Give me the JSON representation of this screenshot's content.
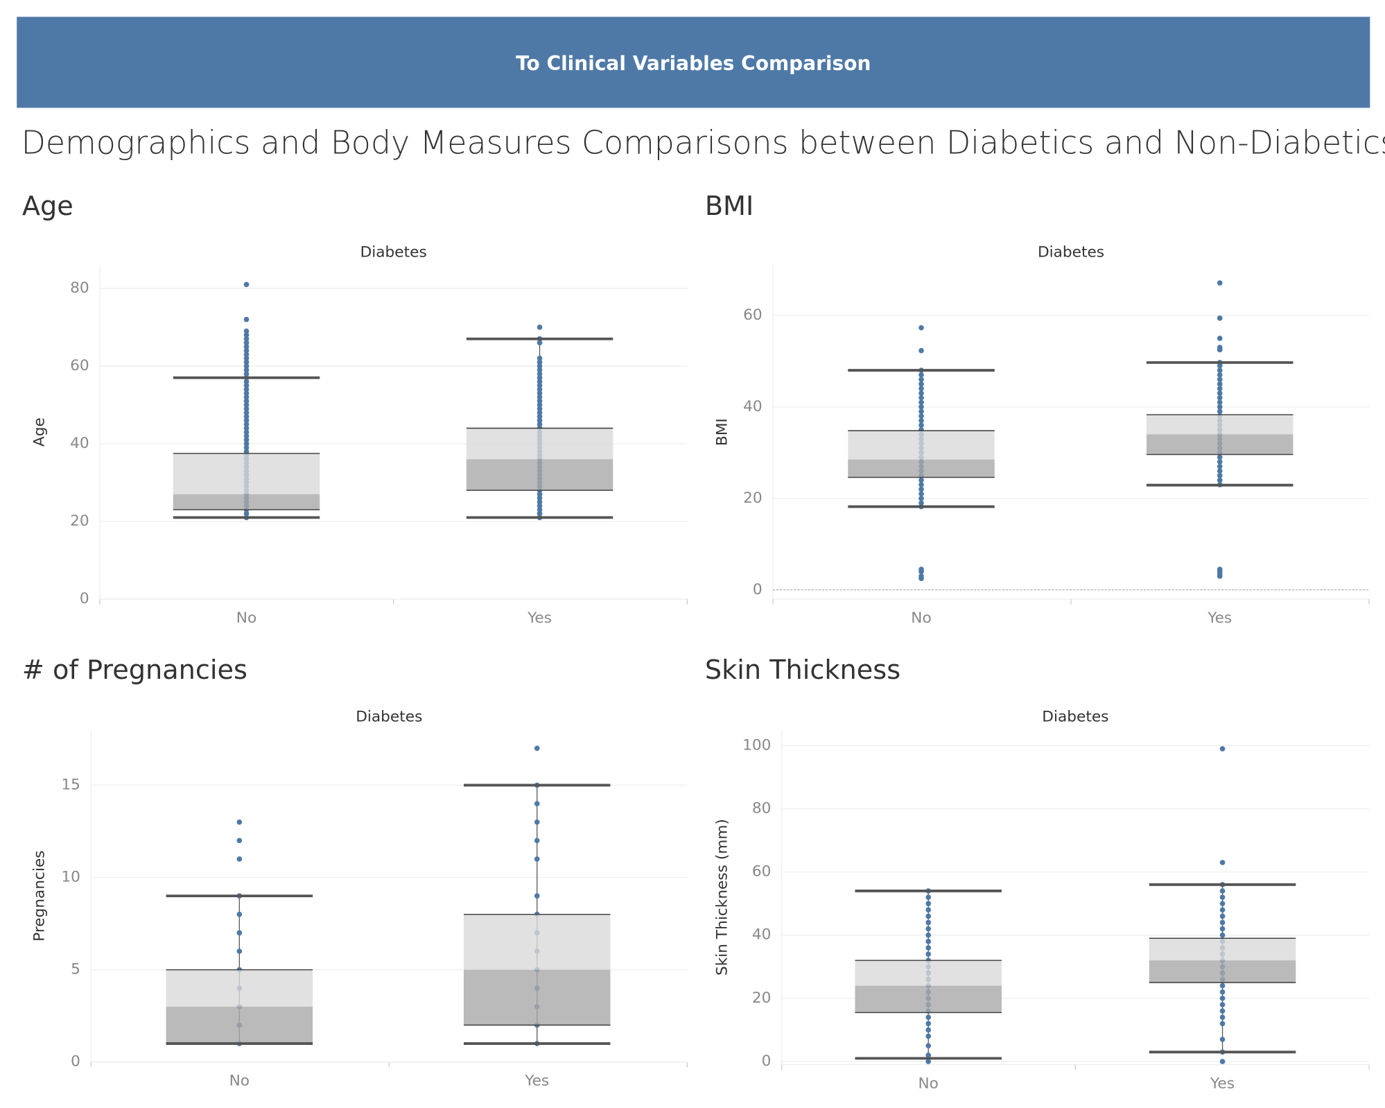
{
  "header_button": {
    "label": "To Clinical Variables Comparison"
  },
  "title": "Demographics and Body Measures Comparisons between Diabetics and Non-Diabetics",
  "chart_data": [
    {
      "type": "box",
      "title": "Age",
      "column_header": "Diabetes",
      "y_label": "Age",
      "categories": [
        "No",
        "Yes"
      ],
      "boxes": [
        {
          "whisker_low": 21,
          "q1": 23,
          "median": 27,
          "q3": 37.5,
          "whisker_high": 57
        },
        {
          "whisker_low": 21,
          "q1": 28,
          "median": 36,
          "q3": 44,
          "whisker_high": 67
        }
      ],
      "points": [
        [
          21,
          22,
          23,
          24,
          25,
          26,
          27,
          28,
          29,
          30,
          31,
          32,
          33,
          34,
          35,
          36,
          37,
          38,
          39,
          40,
          41,
          42,
          43,
          44,
          45,
          46,
          47,
          48,
          49,
          50,
          51,
          52,
          53,
          54,
          55,
          56,
          57,
          58,
          59,
          60,
          61,
          62,
          63,
          64,
          65,
          66,
          67,
          68,
          69,
          72,
          81
        ],
        [
          21,
          22,
          23,
          24,
          25,
          26,
          27,
          28,
          29,
          30,
          31,
          32,
          33,
          34,
          35,
          36,
          37,
          38,
          39,
          40,
          41,
          42,
          43,
          44,
          45,
          46,
          47,
          48,
          49,
          50,
          51,
          52,
          53,
          54,
          55,
          56,
          57,
          58,
          59,
          60,
          61,
          62,
          66,
          67,
          70
        ]
      ],
      "ylim": [
        0,
        86
      ],
      "yticks": [
        0,
        20,
        40,
        60,
        80
      ],
      "grid": true,
      "point_color": "#4e79a7"
    },
    {
      "type": "box",
      "title": "BMI",
      "column_header": "Diabetes",
      "y_label": "BMI",
      "categories": [
        "No",
        "Yes"
      ],
      "boxes": [
        {
          "whisker_low": 18.2,
          "q1": 24.6,
          "median": 28.5,
          "q3": 34.8,
          "whisker_high": 48
        },
        {
          "whisker_low": 22.9,
          "q1": 29.6,
          "median": 34,
          "q3": 38.3,
          "whisker_high": 49.7
        }
      ],
      "points": [
        [
          2.5,
          3,
          4,
          4.5,
          18.2,
          19,
          20,
          21,
          22,
          23,
          24,
          25,
          26,
          27,
          28,
          29,
          30,
          31,
          32,
          33,
          34,
          35,
          36,
          37,
          38,
          39,
          40,
          41,
          42,
          43,
          44,
          45,
          46,
          47,
          48,
          52.3,
          57.3
        ],
        [
          3,
          3.5,
          4,
          4.5,
          23,
          24,
          25,
          26,
          27,
          28,
          29,
          30,
          31,
          32,
          33,
          34,
          35,
          36,
          37,
          38,
          39,
          40,
          41,
          42,
          43,
          44,
          45,
          46,
          47,
          48,
          49,
          49.7,
          52.5,
          53,
          55,
          59.4,
          67.1
        ]
      ],
      "ylim": [
        -2,
        71
      ],
      "yticks": [
        0,
        20,
        40,
        60
      ],
      "grid": true,
      "zero_line": true,
      "point_color": "#4e79a7"
    },
    {
      "type": "box",
      "title": "# of Pregnancies",
      "column_header": "Diabetes",
      "y_label": "Pregnancies",
      "categories": [
        "No",
        "Yes"
      ],
      "boxes": [
        {
          "whisker_low": 1,
          "q1": 1,
          "median": 3,
          "q3": 5,
          "whisker_high": 9
        },
        {
          "whisker_low": 1,
          "q1": 2,
          "median": 5,
          "q3": 8,
          "whisker_high": 15
        }
      ],
      "points": [
        [
          1,
          2,
          3,
          4,
          5,
          6,
          7,
          8,
          9,
          11,
          12,
          13
        ],
        [
          1,
          2,
          3,
          4,
          5,
          6,
          7,
          8,
          9,
          11,
          12,
          13,
          14,
          15,
          17
        ]
      ],
      "ylim": [
        0,
        18
      ],
      "yticks": [
        0,
        5,
        10,
        15
      ],
      "grid": true,
      "point_color": "#4e79a7"
    },
    {
      "type": "box",
      "title": "Skin Thickness",
      "column_header": "Diabetes",
      "y_label": "Skin Thickness (mm)",
      "categories": [
        "No",
        "Yes"
      ],
      "boxes": [
        {
          "whisker_low": 1,
          "q1": 15.5,
          "median": 24,
          "q3": 32,
          "whisker_high": 54
        },
        {
          "whisker_low": 3,
          "q1": 25,
          "median": 32,
          "q3": 39,
          "whisker_high": 56
        }
      ],
      "points": [
        [
          0,
          2,
          5,
          8,
          10,
          12,
          14,
          16,
          18,
          20,
          22,
          24,
          26,
          28,
          30,
          32,
          34,
          36,
          38,
          40,
          42,
          44,
          46,
          48,
          50,
          52,
          54
        ],
        [
          0,
          3,
          7,
          12,
          14,
          16,
          18,
          20,
          22,
          24,
          26,
          28,
          30,
          32,
          34,
          36,
          38,
          40,
          42,
          44,
          46,
          48,
          50,
          52,
          54,
          56,
          63,
          99
        ]
      ],
      "ylim": [
        -1,
        105
      ],
      "yticks": [
        0,
        20,
        40,
        60,
        80,
        100
      ],
      "grid": true,
      "point_color": "#4e79a7"
    }
  ]
}
